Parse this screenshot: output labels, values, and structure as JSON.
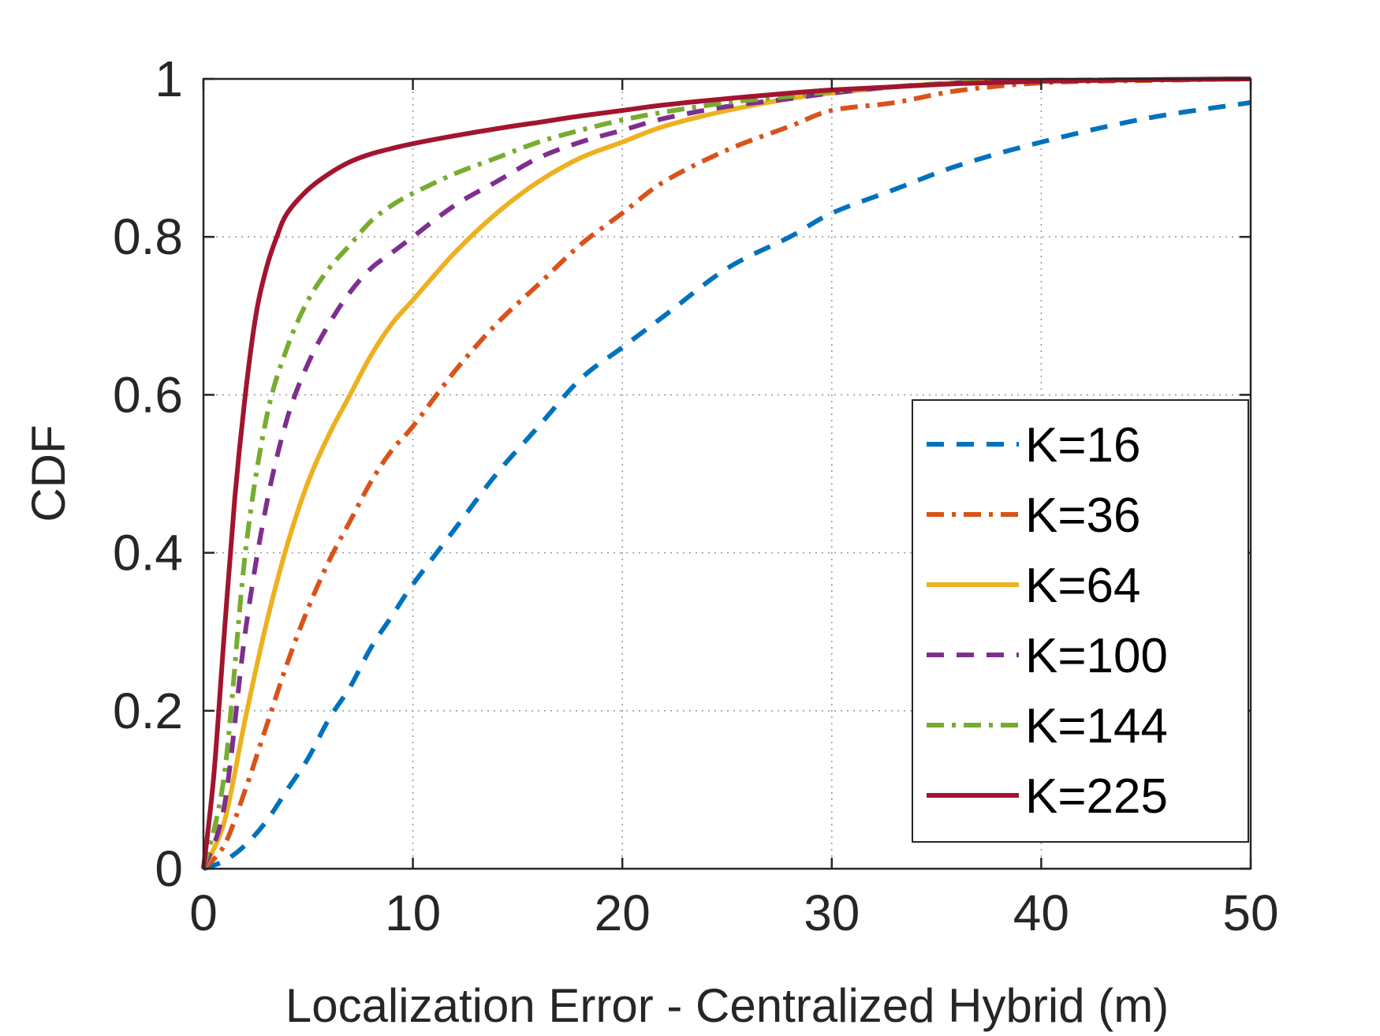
{
  "chart_data": {
    "type": "line",
    "title": "",
    "xlabel": "Localization Error - Centralized Hybrid (m)",
    "ylabel": "CDF",
    "xlim": [
      0,
      50
    ],
    "ylim": [
      0,
      1
    ],
    "x_ticks": [
      "0",
      "10",
      "20",
      "30",
      "40",
      "50"
    ],
    "y_ticks": [
      "0",
      "0.2",
      "0.4",
      "0.6",
      "0.8",
      "1"
    ],
    "x_tick_values": [
      0,
      10,
      20,
      30,
      40,
      50
    ],
    "y_tick_values": [
      0,
      0.2,
      0.4,
      0.6,
      0.8,
      1
    ],
    "grid": true,
    "legend_position": "bottom-right",
    "series": [
      {
        "name": "K=16",
        "color": "#0072BD",
        "dash": "dashed",
        "x": [
          0,
          1,
          2,
          3,
          4,
          5,
          6,
          7,
          8,
          9,
          10,
          12,
          14,
          16,
          18,
          20,
          22,
          25,
          28,
          30,
          33,
          36,
          40,
          45,
          50
        ],
        "y": [
          0,
          0.01,
          0.03,
          0.06,
          0.1,
          0.14,
          0.19,
          0.23,
          0.28,
          0.32,
          0.36,
          0.43,
          0.5,
          0.56,
          0.62,
          0.66,
          0.7,
          0.76,
          0.8,
          0.83,
          0.86,
          0.89,
          0.92,
          0.95,
          0.97
        ]
      },
      {
        "name": "K=36",
        "color": "#D95319",
        "dash": "dashdot",
        "x": [
          0,
          1,
          2,
          3,
          4,
          5,
          6,
          7,
          8,
          9,
          10,
          12,
          14,
          16,
          18,
          20,
          22,
          25,
          28,
          30,
          33,
          36,
          40,
          45,
          50
        ],
        "y": [
          0,
          0.03,
          0.1,
          0.18,
          0.26,
          0.33,
          0.39,
          0.44,
          0.49,
          0.53,
          0.56,
          0.63,
          0.69,
          0.74,
          0.79,
          0.83,
          0.87,
          0.91,
          0.94,
          0.96,
          0.97,
          0.985,
          0.995,
          0.998,
          1.0
        ]
      },
      {
        "name": "K=64",
        "color": "#EDB120",
        "dash": "solid",
        "x": [
          0,
          1,
          2,
          3,
          4,
          5,
          6,
          7,
          8,
          9,
          10,
          12,
          14,
          16,
          18,
          20,
          22,
          25,
          28,
          30,
          33,
          36,
          40,
          45,
          50
        ],
        "y": [
          0,
          0.06,
          0.19,
          0.31,
          0.41,
          0.49,
          0.55,
          0.6,
          0.65,
          0.69,
          0.72,
          0.78,
          0.83,
          0.87,
          0.9,
          0.92,
          0.94,
          0.96,
          0.975,
          0.982,
          0.99,
          0.995,
          0.998,
          0.999,
          1.0
        ]
      },
      {
        "name": "K=100",
        "color": "#7E2F8E",
        "dash": "dashed",
        "x": [
          0,
          1,
          2,
          3,
          4,
          5,
          6,
          7,
          8,
          9,
          10,
          12,
          14,
          16,
          18,
          20,
          22,
          25,
          28,
          30,
          33,
          36,
          40,
          45,
          50
        ],
        "y": [
          0,
          0.08,
          0.3,
          0.46,
          0.57,
          0.64,
          0.69,
          0.73,
          0.76,
          0.78,
          0.8,
          0.84,
          0.87,
          0.9,
          0.92,
          0.935,
          0.95,
          0.965,
          0.975,
          0.982,
          0.99,
          0.995,
          0.998,
          0.999,
          1.0
        ]
      },
      {
        "name": "K=144",
        "color": "#77AC30",
        "dash": "dashdot",
        "x": [
          0,
          1,
          2,
          3,
          4,
          5,
          6,
          7,
          8,
          9,
          10,
          12,
          14,
          16,
          18,
          20,
          22,
          25,
          28,
          30,
          33,
          36,
          40,
          45,
          50
        ],
        "y": [
          0,
          0.12,
          0.4,
          0.57,
          0.66,
          0.72,
          0.76,
          0.79,
          0.82,
          0.84,
          0.855,
          0.88,
          0.9,
          0.92,
          0.935,
          0.948,
          0.958,
          0.97,
          0.978,
          0.984,
          0.99,
          0.995,
          0.998,
          0.999,
          1.0
        ]
      },
      {
        "name": "K=225",
        "color": "#A2142F",
        "dash": "solid",
        "x": [
          0,
          0.5,
          1,
          1.5,
          2,
          2.5,
          3,
          3.5,
          4,
          5,
          6,
          7,
          8,
          9,
          10,
          12,
          14,
          16,
          18,
          20,
          22,
          25,
          28,
          30,
          33,
          36,
          40,
          45,
          50
        ],
        "y": [
          0,
          0.12,
          0.3,
          0.47,
          0.6,
          0.7,
          0.76,
          0.8,
          0.83,
          0.86,
          0.88,
          0.895,
          0.905,
          0.912,
          0.918,
          0.928,
          0.937,
          0.945,
          0.953,
          0.96,
          0.967,
          0.975,
          0.982,
          0.986,
          0.99,
          0.994,
          0.997,
          0.999,
          1.0
        ]
      }
    ]
  }
}
